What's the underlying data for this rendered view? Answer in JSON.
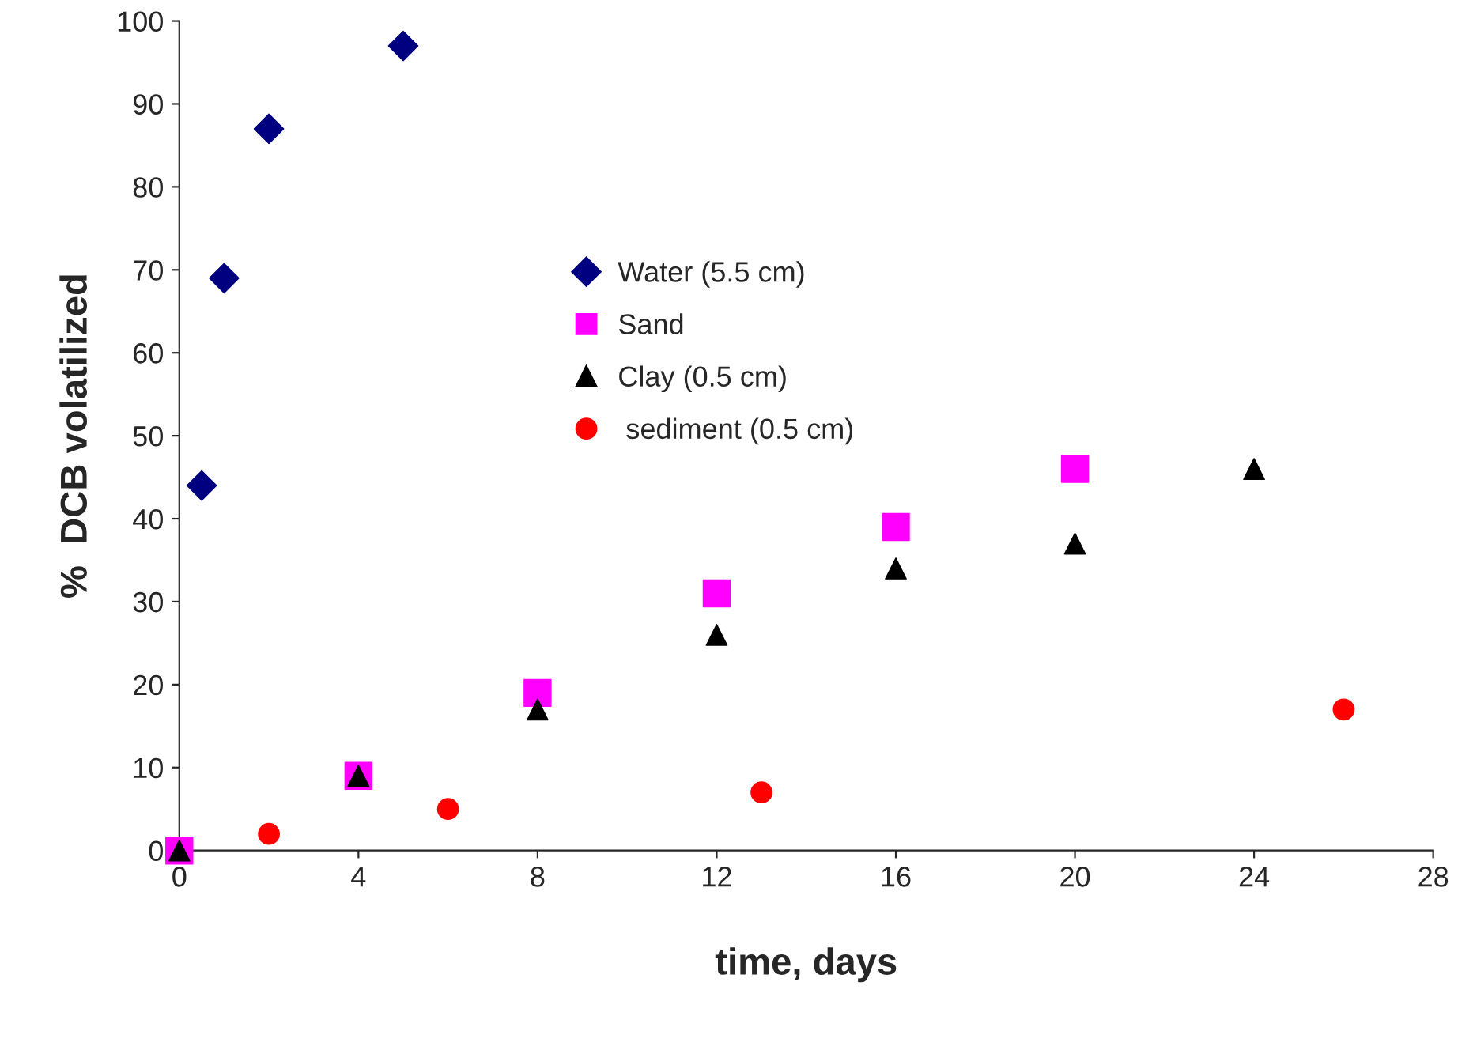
{
  "chart_data": {
    "type": "scatter",
    "xlabel": "time, days",
    "ylabel": "%  DCB volatilized",
    "series": [
      {
        "name": "Water (5.5 cm)",
        "color": "#000080",
        "marker": "diamond",
        "x": [
          0.5,
          1,
          2,
          5
        ],
        "values": [
          44,
          69,
          87,
          97
        ]
      },
      {
        "name": "Sand",
        "color": "#ff00ff",
        "marker": "square",
        "x": [
          0,
          4,
          8,
          12,
          16,
          20
        ],
        "values": [
          0,
          9,
          19,
          31,
          39,
          46
        ]
      },
      {
        "name": "Clay (0.5 cm)",
        "color": "#000000",
        "marker": "triangle",
        "x": [
          0,
          4,
          8,
          12,
          16,
          20,
          24
        ],
        "values": [
          0,
          9,
          17,
          26,
          34,
          37,
          46
        ]
      },
      {
        "name": " sediment (0.5 cm)",
        "color": "#ff0000",
        "marker": "circle",
        "x": [
          2,
          6,
          13,
          26
        ],
        "values": [
          2,
          5,
          7,
          17
        ]
      }
    ],
    "xlim": [
      0,
      28
    ],
    "xticks": [
      0,
      4,
      8,
      12,
      16,
      20,
      24,
      28
    ],
    "ylim": [
      0,
      100
    ],
    "yticks": [
      0,
      10,
      20,
      30,
      40,
      50,
      60,
      70,
      80,
      90,
      100
    ],
    "grid": false,
    "legend": "center"
  }
}
